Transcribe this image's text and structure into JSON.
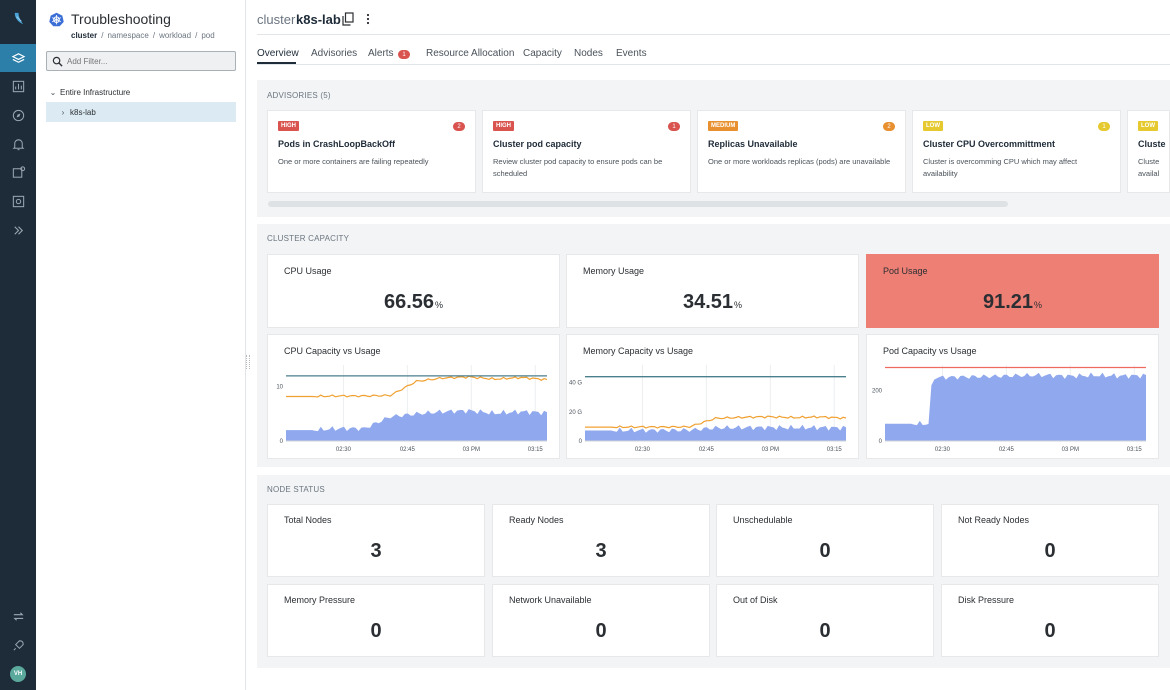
{
  "rail": {
    "items": [
      {
        "icon": "app-logo-icon"
      },
      {
        "icon": "layers-icon",
        "active": true
      },
      {
        "icon": "dashboard-icon"
      },
      {
        "icon": "compass-icon"
      },
      {
        "icon": "alerts-bell-icon"
      },
      {
        "icon": "topology-icon"
      },
      {
        "icon": "settings-icon"
      },
      {
        "icon": "expand-rail-icon"
      },
      {
        "icon": "sync-icon"
      },
      {
        "icon": "rocket-icon"
      }
    ],
    "avatar_initials": "VH"
  },
  "tree_panel": {
    "title": "Troubleshooting",
    "breadcrumb": [
      "cluster",
      "namespace",
      "workload",
      "pod"
    ],
    "filter_placeholder": "Add Filter...",
    "filter_value": "",
    "root_label": "Entire Infrastructure",
    "child_label": "k8s-lab"
  },
  "header": {
    "prefix": "cluster",
    "name": "k8s-lab"
  },
  "tabs": {
    "overview": "Overview",
    "advisories": "Advisories",
    "alerts": "Alerts",
    "alerts_count": "1",
    "resource_allocation": "Resource Allocation",
    "capacity": "Capacity",
    "nodes": "Nodes",
    "events": "Events"
  },
  "advisories": {
    "title": "ADVISORIES (5)",
    "items": [
      {
        "severity": "HIGH",
        "count": "2",
        "title": "Pods in CrashLoopBackOff",
        "description": "One or more containers are failing repeatedly"
      },
      {
        "severity": "HIGH",
        "count": "1",
        "title": "Cluster pod capacity",
        "description": "Review cluster pod capacity to ensure pods can be scheduled"
      },
      {
        "severity": "MEDIUM",
        "count": "2",
        "title": "Replicas Unavailable",
        "description": "One or more workloads replicas (pods) are unavailable"
      },
      {
        "severity": "LOW",
        "count": "1",
        "title": "Cluster CPU Overcommittment",
        "description": "Cluster is overcomming CPU which may affect availability"
      },
      {
        "severity": "LOW",
        "count": "",
        "title": "Cluste",
        "description": "Cluste availal"
      }
    ],
    "colors": {
      "HIGH": "#d9534f",
      "MEDIUM": "#e8902f",
      "LOW": "#e5c92e"
    }
  },
  "capacity": {
    "title": "CLUSTER CAPACITY",
    "cpu": {
      "label": "CPU Usage",
      "value": "66.56",
      "unit": "%"
    },
    "memory": {
      "label": "Memory Usage",
      "value": "34.51",
      "unit": "%"
    },
    "pod": {
      "label": "Pod Usage",
      "value": "91.21",
      "unit": "%"
    },
    "alert_color": "#ee7f74"
  },
  "chart_data": [
    {
      "type": "line",
      "title": "CPU Capacity vs Usage",
      "x_ticks": [
        "02:30",
        "02:45",
        "03 PM",
        "03:15"
      ],
      "y_ticks": [
        "0",
        "10"
      ],
      "ylim": [
        0,
        14
      ],
      "capacity_line": 12.0,
      "x": [
        0,
        10,
        20,
        30,
        40,
        50,
        60,
        70,
        80,
        90,
        100
      ],
      "series": [
        {
          "color": "#f0a030",
          "values": [
            8.2,
            8.2,
            8.3,
            8.3,
            8.4,
            11.0,
            11.6,
            11.8,
            11.4,
            11.7,
            11.3
          ]
        },
        {
          "color": "#8fa8ee",
          "values": [
            2.0,
            2.0,
            2.3,
            2.3,
            4.5,
            5.0,
            5.4,
            5.6,
            5.1,
            5.4,
            5.2
          ]
        }
      ]
    },
    {
      "type": "line",
      "title": "Memory Capacity vs Usage",
      "x_ticks": [
        "02:30",
        "02:45",
        "03 PM",
        "03:15"
      ],
      "y_ticks": [
        "0",
        "20 G",
        "40 G"
      ],
      "ylim": [
        0,
        52
      ],
      "capacity_line": 44.0,
      "x": [
        0,
        10,
        20,
        30,
        40,
        50,
        60,
        70,
        80,
        90,
        100
      ],
      "series": [
        {
          "color": "#f0a030",
          "values": [
            9.5,
            9.5,
            9.6,
            9.6,
            9.7,
            15.5,
            16.2,
            16.6,
            16.0,
            16.5,
            15.6
          ]
        },
        {
          "color": "#8fa8ee",
          "values": [
            7.2,
            7.2,
            7.3,
            7.3,
            7.5,
            9.0,
            9.2,
            9.3,
            9.1,
            9.2,
            9.0
          ]
        }
      ]
    },
    {
      "type": "area",
      "title": "Pod Capacity vs Usage",
      "x_ticks": [
        "02:30",
        "02:45",
        "03 PM",
        "03:15"
      ],
      "y_ticks": [
        "0",
        "200"
      ],
      "ylim": [
        0,
        300
      ],
      "capacity_line": 290,
      "x": [
        0,
        10,
        17,
        18,
        30,
        40,
        50,
        60,
        70,
        80,
        90,
        100
      ],
      "series": [
        {
          "color": "#8fa8ee",
          "values": [
            68,
            68,
            68,
            250,
            253,
            255,
            258,
            260,
            256,
            259,
            257,
            258
          ]
        }
      ],
      "capacity_color": "#ee6b5f"
    }
  ],
  "node_status": {
    "title": "NODE STATUS",
    "cards": [
      {
        "label": "Total Nodes",
        "value": "3"
      },
      {
        "label": "Ready Nodes",
        "value": "3"
      },
      {
        "label": "Unschedulable",
        "value": "0"
      },
      {
        "label": "Not Ready Nodes",
        "value": "0"
      },
      {
        "label": "Memory Pressure",
        "value": "0"
      },
      {
        "label": "Network Unavailable",
        "value": "0"
      },
      {
        "label": "Out of Disk",
        "value": "0"
      },
      {
        "label": "Disk Pressure",
        "value": "0"
      }
    ]
  }
}
